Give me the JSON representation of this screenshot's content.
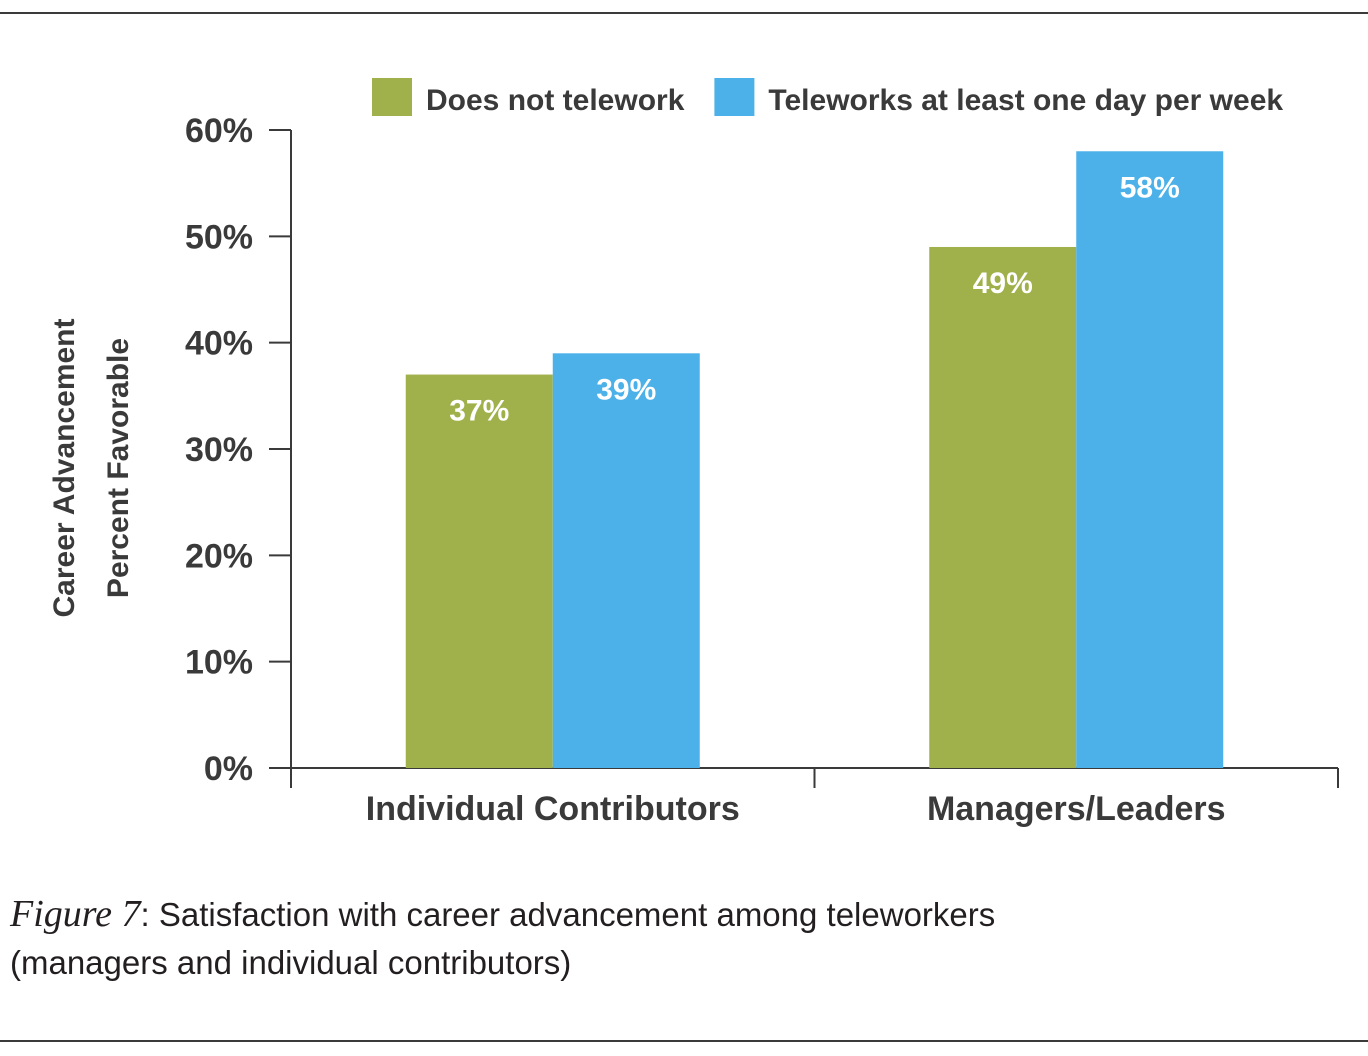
{
  "caption": {
    "figure_label": "Figure 7",
    "text_line1": ": Satisfaction with career advancement among teleworkers",
    "text_line2": "(managers and individual contributors)"
  },
  "chart_data": {
    "type": "bar",
    "title": "",
    "xlabel": "",
    "ylabel_line1": "Career Advancement",
    "ylabel_line2": "Percent Favorable",
    "categories": [
      "Individual Contributors",
      "Managers/Leaders"
    ],
    "series": [
      {
        "name": "Does not telework",
        "color": "#a0b04a",
        "values": [
          37,
          49
        ],
        "labels": [
          "37%",
          "49%"
        ]
      },
      {
        "name": "Teleworks at least one day per week",
        "color": "#4cb1e8",
        "values": [
          39,
          58
        ],
        "labels": [
          "39%",
          "58%"
        ]
      }
    ],
    "ylim": [
      0,
      60
    ],
    "yticks": [
      0,
      10,
      20,
      30,
      40,
      50,
      60
    ],
    "ytick_labels": [
      "0%",
      "10%",
      "20%",
      "30%",
      "40%",
      "50%",
      "60%"
    ],
    "grid": false,
    "legend": "top"
  }
}
